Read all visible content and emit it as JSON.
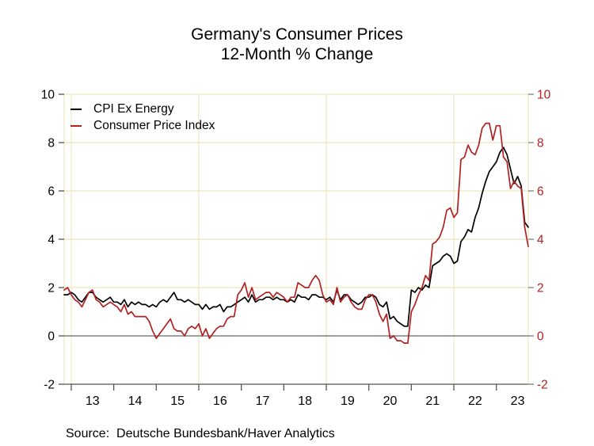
{
  "figure": {
    "title_line1": "Germany's Consumer Prices",
    "title_line2": "12-Month % Change",
    "source": "Source:  Deutsche Bundesbank/Haver Analytics"
  },
  "chart_data": {
    "type": "line",
    "title": "Germany's Consumer Prices",
    "subtitle": "12-Month % Change",
    "xlabel": "",
    "ylabel": "",
    "frequency": "monthly",
    "x_start": "2012-11",
    "x_end": "2023-10",
    "x_axis": {
      "year_labels": [
        "13",
        "14",
        "15",
        "16",
        "17",
        "18",
        "19",
        "20",
        "21",
        "22",
        "23"
      ],
      "first_january_month_index": 2,
      "months_per_year": 12,
      "gridline_month_indices": [
        2,
        38,
        74,
        110
      ],
      "tick_color": "#555555",
      "label_color": "#000000"
    },
    "y_axis": {
      "ticks": [
        -2,
        0,
        2,
        4,
        6,
        8,
        10
      ],
      "min": -2,
      "max": 10,
      "left_label_color": "#000000",
      "right_label_color": "#b22222",
      "left_tick_color": "#555555",
      "right_tick_color": "#808080"
    },
    "grid": true,
    "grid_color": "#ece7c0",
    "zero_line": true,
    "zero_line_color": "#808080",
    "axis_color": "#707070",
    "legend_position": "top-left",
    "series": [
      {
        "name": "CPI Ex Energy",
        "color": "#000000",
        "values": [
          1.7,
          1.7,
          1.8,
          1.7,
          1.5,
          1.4,
          1.6,
          1.8,
          1.8,
          1.6,
          1.5,
          1.4,
          1.5,
          1.6,
          1.4,
          1.4,
          1.3,
          1.5,
          1.2,
          1.4,
          1.3,
          1.4,
          1.3,
          1.3,
          1.2,
          1.3,
          1.2,
          1.4,
          1.5,
          1.4,
          1.6,
          1.8,
          1.5,
          1.5,
          1.4,
          1.5,
          1.4,
          1.3,
          1.3,
          1.1,
          1.3,
          1.1,
          1.2,
          1.2,
          1.3,
          1.0,
          1.2,
          1.2,
          1.3,
          1.4,
          1.5,
          1.6,
          1.4,
          1.7,
          1.4,
          1.5,
          1.5,
          1.6,
          1.6,
          1.5,
          1.6,
          1.5,
          1.5,
          1.4,
          1.5,
          1.4,
          1.7,
          1.6,
          1.6,
          1.5,
          1.7,
          1.7,
          1.6,
          1.6,
          1.5,
          1.6,
          1.4,
          1.9,
          1.5,
          1.7,
          1.7,
          1.5,
          1.4,
          1.3,
          1.4,
          1.6,
          1.6,
          1.7,
          1.6,
          1.3,
          1.2,
          1.4,
          0.7,
          0.8,
          0.6,
          0.5,
          0.4,
          0.4,
          1.9,
          1.8,
          2.0,
          1.9,
          2.1,
          2.0,
          2.9,
          3.0,
          3.1,
          3.3,
          3.4,
          3.3,
          3.0,
          3.1,
          3.9,
          4.1,
          4.4,
          4.3,
          4.9,
          5.3,
          5.9,
          6.4,
          6.8,
          7.0,
          7.2,
          7.6,
          7.8,
          7.5,
          6.9,
          6.3,
          6.6,
          6.2,
          4.7,
          4.5
        ]
      },
      {
        "name": "Consumer Price Index",
        "color": "#b22222",
        "values": [
          1.9,
          2.0,
          1.7,
          1.5,
          1.4,
          1.2,
          1.5,
          1.8,
          1.9,
          1.5,
          1.4,
          1.2,
          1.3,
          1.4,
          1.3,
          1.2,
          1.0,
          1.3,
          0.9,
          1.0,
          0.8,
          0.8,
          0.8,
          0.8,
          0.6,
          0.2,
          -0.1,
          0.1,
          0.3,
          0.5,
          0.7,
          0.3,
          0.2,
          0.2,
          0.0,
          0.3,
          0.4,
          0.3,
          0.5,
          0.0,
          0.3,
          -0.1,
          0.1,
          0.3,
          0.4,
          0.4,
          0.7,
          0.8,
          0.8,
          1.7,
          1.9,
          2.2,
          1.6,
          2.0,
          1.5,
          1.6,
          1.7,
          1.8,
          1.8,
          1.6,
          1.8,
          1.7,
          1.6,
          1.4,
          1.6,
          1.6,
          2.2,
          2.1,
          2.0,
          2.0,
          2.3,
          2.5,
          2.3,
          1.7,
          1.4,
          1.5,
          1.3,
          2.0,
          1.4,
          1.6,
          1.7,
          1.4,
          1.2,
          1.1,
          1.1,
          1.5,
          1.7,
          1.7,
          1.4,
          0.9,
          0.6,
          0.9,
          -0.1,
          0.0,
          -0.2,
          -0.2,
          -0.3,
          -0.3,
          1.0,
          1.3,
          1.7,
          2.0,
          2.5,
          2.3,
          3.8,
          3.9,
          4.1,
          4.5,
          5.2,
          5.3,
          4.9,
          5.1,
          7.3,
          7.4,
          7.9,
          7.6,
          7.5,
          7.9,
          8.6,
          8.8,
          8.8,
          8.1,
          8.7,
          8.7,
          7.4,
          7.2,
          6.1,
          6.4,
          6.2,
          6.1,
          4.5,
          3.7
        ]
      }
    ],
    "source": "Source:  Deutsche Bundesbank/Haver Analytics"
  }
}
